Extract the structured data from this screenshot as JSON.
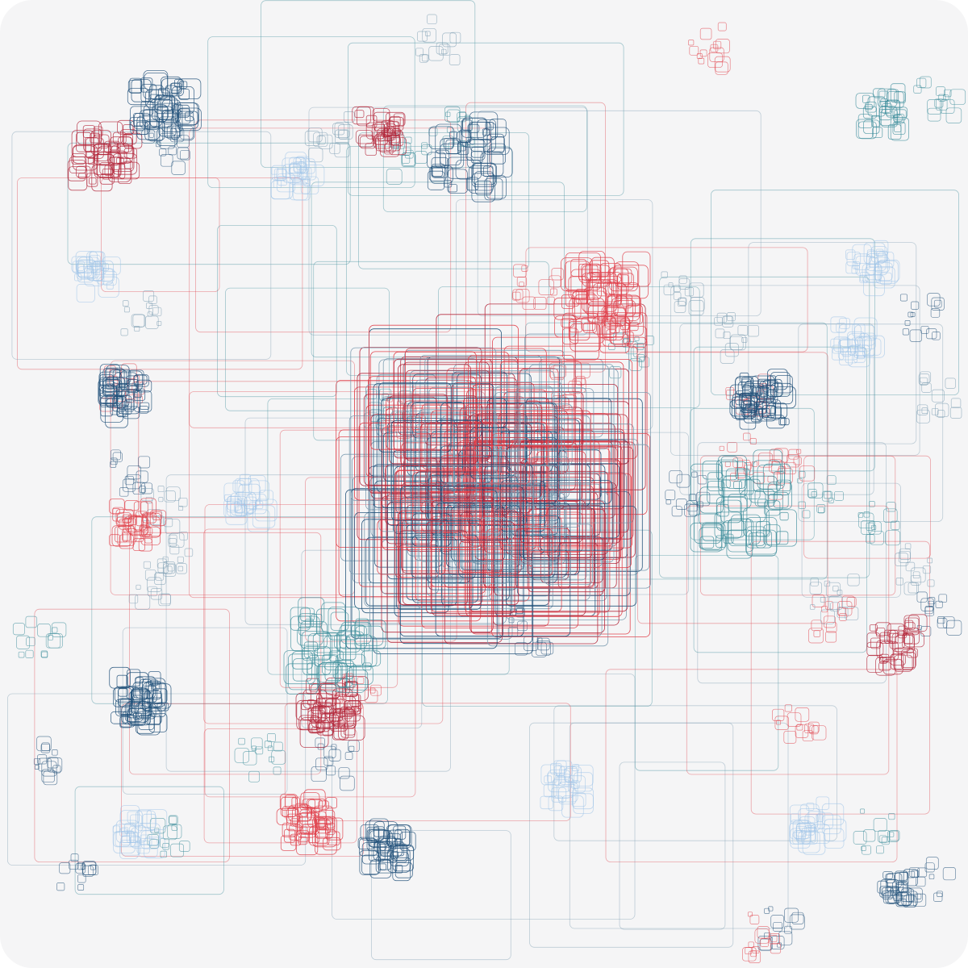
{
  "artwork": {
    "description_visible_text": "",
    "background": "#f5f5f6",
    "palette": {
      "red": "#e0404a",
      "dark_red": "#b3263a",
      "navy": "#1f4f78",
      "teal": "#3a8c9a",
      "light_blue": "#9cc3e8",
      "slate": "#7a9bb0"
    },
    "clusters": [
      {
        "name": "central-dense-cluster",
        "color": "dark_red",
        "density": 1.0,
        "spread": "large"
      },
      {
        "name": "top-left-red-cluster",
        "color": "dark_red",
        "density": 0.6,
        "spread": "medium"
      },
      {
        "name": "top-left-navy-cluster",
        "color": "navy",
        "density": 0.6,
        "spread": "medium"
      },
      {
        "name": "top-center-red-cluster",
        "color": "dark_red",
        "density": 0.5,
        "spread": "small"
      },
      {
        "name": "top-center-navy-cluster",
        "color": "navy",
        "density": 0.5,
        "spread": "medium"
      },
      {
        "name": "top-right-teal-cluster",
        "color": "teal",
        "density": 0.4,
        "spread": "small"
      },
      {
        "name": "upper-right-red-cluster",
        "color": "red",
        "density": 0.7,
        "spread": "medium"
      },
      {
        "name": "right-navy-cluster",
        "color": "navy",
        "density": 0.7,
        "spread": "small"
      },
      {
        "name": "right-teal-cluster",
        "color": "teal",
        "density": 0.6,
        "spread": "medium"
      },
      {
        "name": "left-navy-cluster",
        "color": "navy",
        "density": 0.6,
        "spread": "small"
      },
      {
        "name": "left-red-cluster",
        "color": "red",
        "density": 0.5,
        "spread": "small"
      },
      {
        "name": "lower-left-navy-cluster",
        "color": "navy",
        "density": 0.7,
        "spread": "small"
      },
      {
        "name": "lower-center-red-cluster",
        "color": "dark_red",
        "density": 0.7,
        "spread": "small"
      },
      {
        "name": "lower-center-teal-cluster",
        "color": "teal",
        "density": 0.5,
        "spread": "medium"
      },
      {
        "name": "bottom-red-cluster",
        "color": "red",
        "density": 0.7,
        "spread": "small"
      },
      {
        "name": "bottom-navy-cluster",
        "color": "navy",
        "density": 0.6,
        "spread": "small"
      },
      {
        "name": "bottom-right-red-cluster",
        "color": "dark_red",
        "density": 0.5,
        "spread": "small"
      },
      {
        "name": "bottom-right-navy-cluster",
        "color": "navy",
        "density": 0.4,
        "spread": "small"
      },
      {
        "name": "light-blue-haze-clusters",
        "color": "light_blue",
        "density": 0.3,
        "spread": "medium"
      }
    ]
  }
}
